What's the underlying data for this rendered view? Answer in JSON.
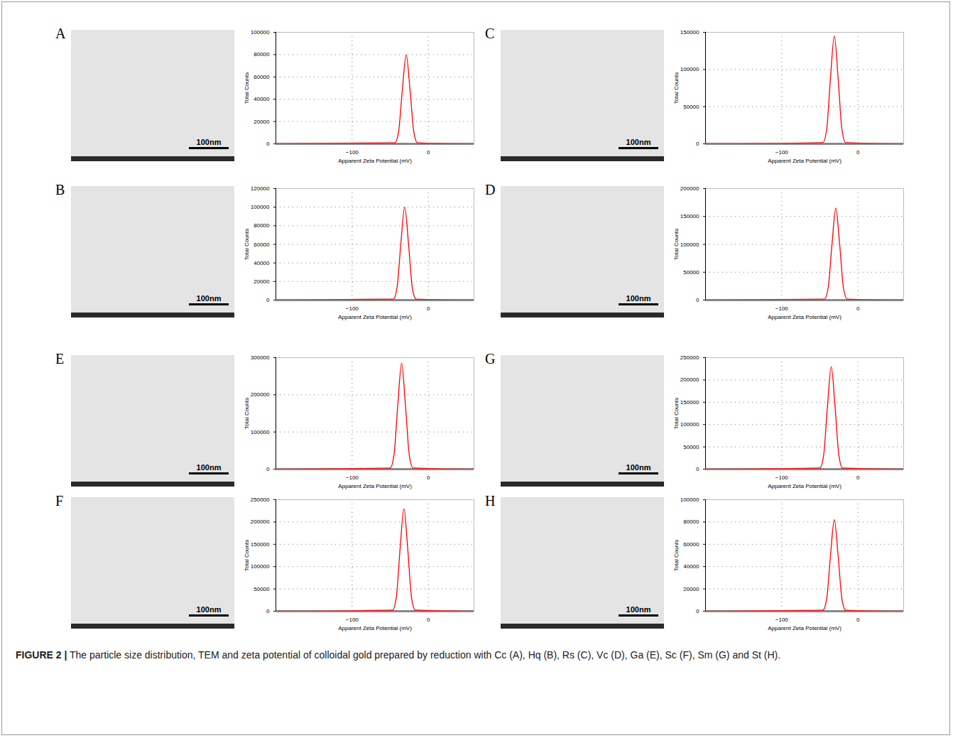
{
  "chart_data": [
    {
      "panel": "A",
      "type": "line",
      "x_label": "Apparent Zeta Potential (mV)",
      "y_label": "Total Counts",
      "scale_bar": "100nm",
      "color": "#ff0000",
      "grid": true,
      "x": [
        -200,
        -44,
        -39,
        -34,
        -29,
        -24,
        -19,
        -14,
        60
      ],
      "values": [
        0,
        880,
        10800,
        48800,
        80000,
        48800,
        10800,
        880,
        0
      ],
      "xlim": [
        -200,
        60
      ],
      "xticks": [
        -100,
        0
      ],
      "ylim": [
        0,
        100000
      ],
      "yticks": [
        0,
        20000,
        40000,
        60000,
        80000,
        100000
      ]
    },
    {
      "panel": "B",
      "type": "line",
      "x_label": "Apparent Zeta Potential (mV)",
      "y_label": "Total Counts",
      "scale_bar": "100nm",
      "color": "#ff0000",
      "grid": true,
      "x": [
        -200,
        -46,
        -41,
        -36,
        -31,
        -26,
        -21,
        -16,
        60
      ],
      "values": [
        0,
        1100,
        13500,
        61000,
        100000,
        61000,
        13500,
        1100,
        0
      ],
      "xlim": [
        -200,
        60
      ],
      "xticks": [
        -100,
        0
      ],
      "ylim": [
        0,
        120000
      ],
      "yticks": [
        0,
        20000,
        40000,
        60000,
        80000,
        100000,
        120000
      ]
    },
    {
      "panel": "C",
      "type": "line",
      "x_label": "Apparent Zeta Potential (mV)",
      "y_label": "Total Counts",
      "scale_bar": "100nm",
      "color": "#ff0000",
      "grid": true,
      "x": [
        -200,
        -46,
        -41,
        -36,
        -31,
        -26,
        -21,
        -16,
        60
      ],
      "values": [
        0,
        1600,
        19600,
        88500,
        145000,
        88500,
        19600,
        1600,
        0
      ],
      "xlim": [
        -200,
        60
      ],
      "xticks": [
        -100,
        0
      ],
      "ylim": [
        0,
        150000
      ],
      "yticks": [
        0,
        50000,
        100000,
        150000
      ]
    },
    {
      "panel": "D",
      "type": "line",
      "x_label": "Apparent Zeta Potential (mV)",
      "y_label": "Total Counts",
      "scale_bar": "100nm",
      "color": "#ff0000",
      "grid": true,
      "x": [
        -200,
        -44,
        -39,
        -34,
        -29,
        -24,
        -19,
        -14,
        60
      ],
      "values": [
        0,
        1800,
        22300,
        100600,
        165000,
        100600,
        22300,
        1800,
        0
      ],
      "xlim": [
        -200,
        60
      ],
      "xticks": [
        -100,
        0
      ],
      "ylim": [
        0,
        200000
      ],
      "yticks": [
        0,
        50000,
        100000,
        150000,
        200000
      ]
    },
    {
      "panel": "E",
      "type": "line",
      "x_label": "Apparent Zeta Potential (mV)",
      "y_label": "Total Counts",
      "scale_bar": "100nm",
      "color": "#ff0000",
      "grid": true,
      "x": [
        -200,
        -50,
        -45,
        -40,
        -35,
        -30,
        -25,
        -20,
        60
      ],
      "values": [
        0,
        3100,
        38500,
        173900,
        285000,
        173900,
        38500,
        3100,
        0
      ],
      "xlim": [
        -200,
        60
      ],
      "xticks": [
        -100,
        0
      ],
      "ylim": [
        0,
        300000
      ],
      "yticks": [
        0,
        100000,
        200000,
        300000
      ]
    },
    {
      "panel": "F",
      "type": "line",
      "x_label": "Apparent Zeta Potential (mV)",
      "y_label": "Total Counts",
      "scale_bar": "100nm",
      "color": "#ff0000",
      "grid": true,
      "x": [
        -200,
        -47,
        -42,
        -37,
        -32,
        -27,
        -22,
        -17,
        60
      ],
      "values": [
        0,
        2500,
        31000,
        140300,
        230000,
        140300,
        31000,
        2500,
        0
      ],
      "xlim": [
        -200,
        60
      ],
      "xticks": [
        -100,
        0
      ],
      "ylim": [
        0,
        250000
      ],
      "yticks": [
        0,
        50000,
        100000,
        150000,
        200000,
        250000
      ]
    },
    {
      "panel": "G",
      "type": "line",
      "x_label": "Apparent Zeta Potential (mV)",
      "y_label": "Total Counts",
      "scale_bar": "100nm",
      "color": "#ff0000",
      "grid": true,
      "x": [
        -200,
        -50,
        -45,
        -40,
        -35,
        -30,
        -25,
        -20,
        60
      ],
      "values": [
        0,
        2500,
        31000,
        140300,
        230000,
        140300,
        31000,
        2500,
        0
      ],
      "xlim": [
        -200,
        60
      ],
      "xticks": [
        -100,
        0
      ],
      "ylim": [
        0,
        250000
      ],
      "yticks": [
        0,
        50000,
        100000,
        150000,
        200000,
        250000
      ]
    },
    {
      "panel": "H",
      "type": "line",
      "x_label": "Apparent Zeta Potential (mV)",
      "y_label": "Total Counts",
      "scale_bar": "100nm",
      "color": "#ff0000",
      "grid": true,
      "x": [
        -200,
        -46,
        -41,
        -36,
        -31,
        -26,
        -21,
        -16,
        60
      ],
      "values": [
        0,
        900,
        11100,
        50000,
        82000,
        50000,
        11100,
        900,
        0
      ],
      "xlim": [
        -200,
        60
      ],
      "xticks": [
        -100,
        0
      ],
      "ylim": [
        0,
        100000
      ],
      "yticks": [
        0,
        20000,
        40000,
        60000,
        80000,
        100000
      ]
    }
  ],
  "caption_label": "FIGURE 2 |",
  "caption_text": "The particle size distribution, TEM and zeta potential of colloidal gold prepared by reduction with Cc (A), Hq (B), Rs (C), Vc (D), Ga (E), Sc (F), Sm (G) and St (H)."
}
